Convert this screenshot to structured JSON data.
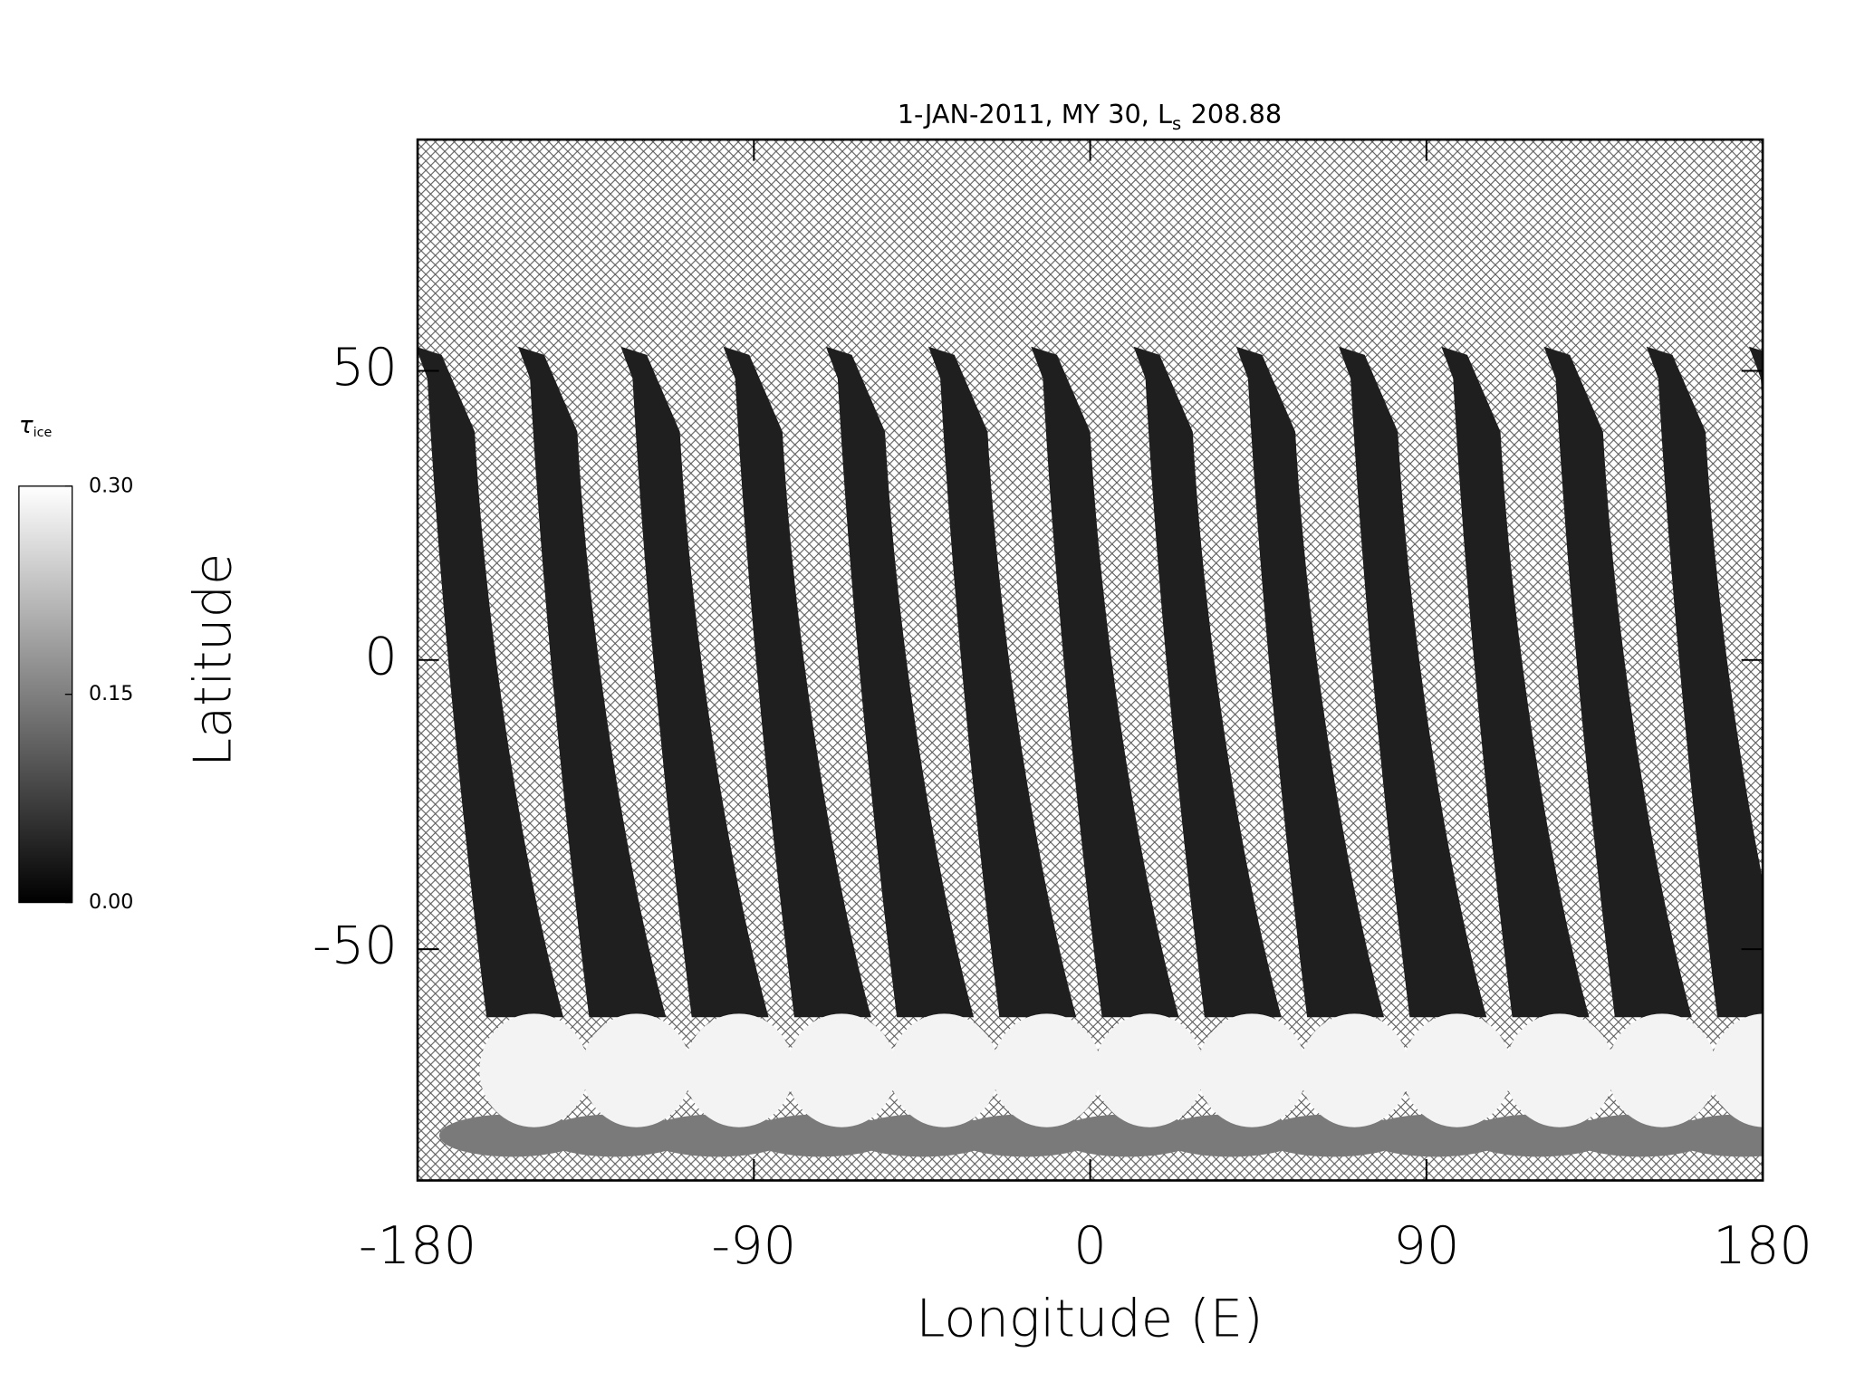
{
  "chart_data": {
    "type": "map",
    "title": "1-JAN-2011, MY 30, L",
    "title_subscript": "s",
    "title_suffix": "208.88",
    "x_label": "Longitude (E)",
    "y_label": "Latitude",
    "xlim": [
      -180,
      180
    ],
    "xticks": [
      -180,
      -90,
      0,
      90,
      180
    ],
    "ylim": [
      -90,
      90
    ],
    "yticks": [
      -50,
      0,
      50
    ],
    "colorbar": {
      "label": "τ",
      "label_subscript": "ice",
      "lim": [
        0,
        0.3
      ],
      "ticks": [
        {
          "value": 0,
          "label": "0.00"
        },
        {
          "value": 0.15,
          "label": "0.15"
        },
        {
          "value": 0.3,
          "label": "0.30"
        }
      ],
      "colors": [
        "#000000",
        "#ffffff"
      ]
    }
  }
}
